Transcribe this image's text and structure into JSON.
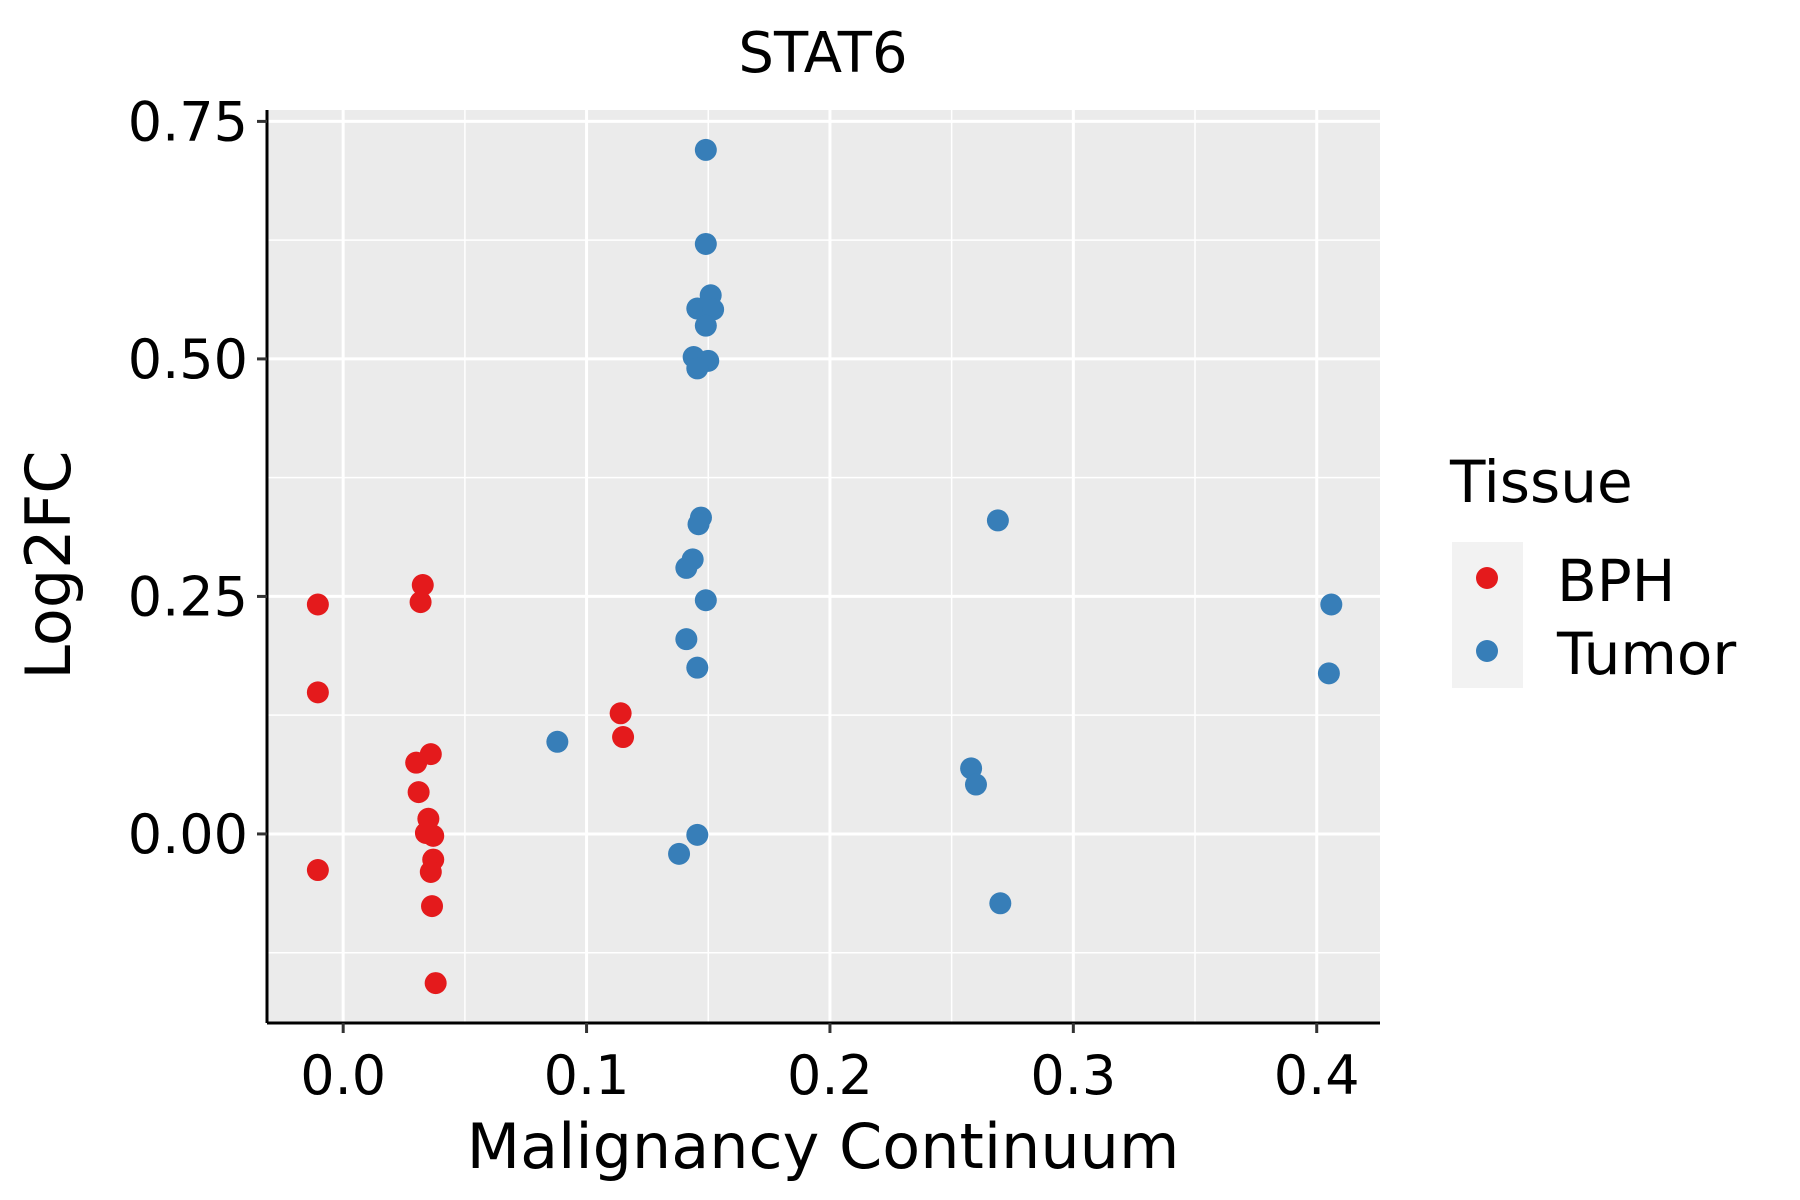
{
  "chart_data": {
    "type": "scatter",
    "title": "STAT6",
    "xlabel": "Malignancy Continuum",
    "ylabel": "Log2FC",
    "xlim": [
      -0.0313,
      0.426
    ],
    "ylim": [
      -0.199,
      0.762
    ],
    "xticks": [
      0.0,
      0.1,
      0.2,
      0.3,
      0.4
    ],
    "xtick_labels": [
      "0.0",
      "0.1",
      "0.2",
      "0.3",
      "0.4"
    ],
    "yticks": [
      0.0,
      0.25,
      0.5,
      0.75
    ],
    "ytick_labels": [
      "0.00",
      "0.25",
      "0.50",
      "0.75"
    ],
    "grid": true,
    "legend": {
      "title": "Tissue",
      "placement": "right"
    },
    "series": [
      {
        "name": "BPH",
        "color": "#E41A1C",
        "points": [
          [
            -0.0104,
            0.2415
          ],
          [
            -0.0104,
            0.149
          ],
          [
            -0.0104,
            -0.038
          ],
          [
            0.0327,
            0.262
          ],
          [
            0.0318,
            0.244
          ],
          [
            0.036,
            0.084
          ],
          [
            0.03,
            0.075
          ],
          [
            0.031,
            0.044
          ],
          [
            0.035,
            0.016
          ],
          [
            0.034,
            0.001
          ],
          [
            0.037,
            -0.002
          ],
          [
            0.037,
            -0.027
          ],
          [
            0.036,
            -0.04
          ],
          [
            0.0365,
            -0.076
          ],
          [
            0.038,
            -0.157
          ],
          [
            0.114,
            0.127
          ],
          [
            0.115,
            0.102
          ]
        ]
      },
      {
        "name": "Tumor",
        "color": "#377EB8",
        "points": [
          [
            0.149,
            0.72
          ],
          [
            0.149,
            0.621
          ],
          [
            0.151,
            0.567
          ],
          [
            0.1455,
            0.553
          ],
          [
            0.152,
            0.552
          ],
          [
            0.149,
            0.535
          ],
          [
            0.144,
            0.502
          ],
          [
            0.15,
            0.498
          ],
          [
            0.1455,
            0.49
          ],
          [
            0.147,
            0.333
          ],
          [
            0.146,
            0.326
          ],
          [
            0.1436,
            0.289
          ],
          [
            0.141,
            0.28
          ],
          [
            0.149,
            0.246
          ],
          [
            0.141,
            0.205
          ],
          [
            0.1455,
            0.175
          ],
          [
            0.088,
            0.097
          ],
          [
            0.1455,
            -0.001
          ],
          [
            0.138,
            -0.021
          ],
          [
            0.269,
            0.33
          ],
          [
            0.258,
            0.069
          ],
          [
            0.26,
            0.052
          ],
          [
            0.27,
            -0.073
          ],
          [
            0.406,
            0.2415
          ],
          [
            0.405,
            0.169
          ]
        ]
      }
    ]
  }
}
